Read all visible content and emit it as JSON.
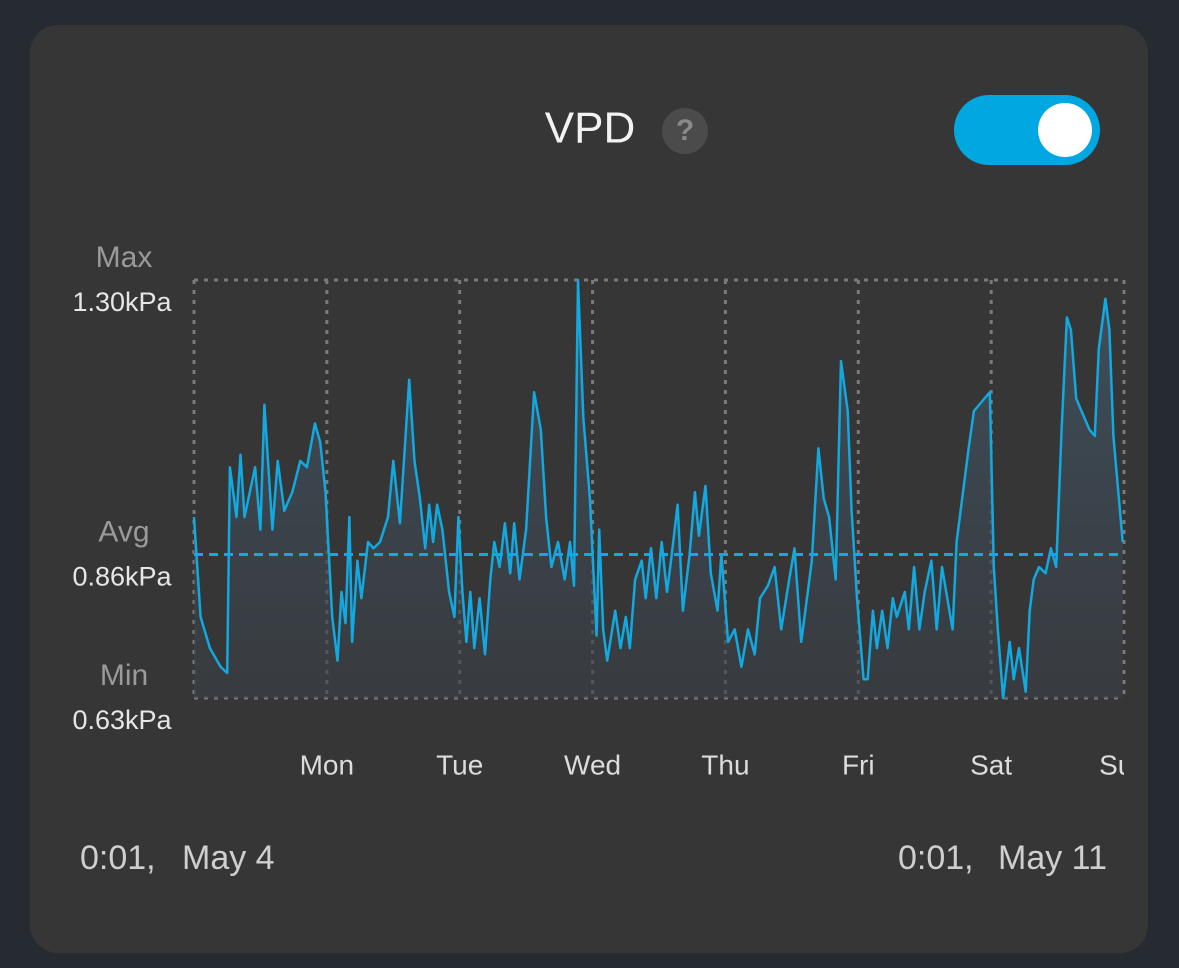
{
  "chart_data": {
    "type": "line",
    "title": "VPD",
    "help": "?",
    "toggle_on": true,
    "color": "#12a8e0",
    "x": [
      0.0,
      0.05,
      0.12,
      0.2,
      0.25,
      0.27,
      0.32,
      0.35,
      0.38,
      0.46,
      0.5,
      0.53,
      0.59,
      0.63,
      0.68,
      0.74,
      0.8,
      0.85,
      0.91,
      0.95,
      0.99,
      1.04,
      1.08,
      1.11,
      1.14,
      1.17,
      1.19,
      1.23,
      1.26,
      1.31,
      1.35,
      1.4,
      1.46,
      1.5,
      1.55,
      1.62,
      1.66,
      1.7,
      1.74,
      1.77,
      1.8,
      1.83,
      1.87,
      1.92,
      1.96,
      1.99,
      2.02,
      2.05,
      2.08,
      2.11,
      2.15,
      2.19,
      2.23,
      2.26,
      2.3,
      2.34,
      2.38,
      2.41,
      2.45,
      2.5,
      2.56,
      2.61,
      2.65,
      2.69,
      2.74,
      2.79,
      2.83,
      2.86,
      2.89,
      2.93,
      2.98,
      3.0,
      3.03,
      3.05,
      3.08,
      3.11,
      3.17,
      3.21,
      3.25,
      3.28,
      3.32,
      3.37,
      3.4,
      3.44,
      3.48,
      3.52,
      3.56,
      3.59,
      3.64,
      3.68,
      3.73,
      3.77,
      3.8,
      3.85,
      3.89,
      3.94,
      3.97,
      4.02,
      4.07,
      4.12,
      4.17,
      4.22,
      4.26,
      4.32,
      4.37,
      4.42,
      4.48,
      4.52,
      4.57,
      4.62,
      4.65,
      4.7,
      4.74,
      4.78,
      4.83,
      4.87,
      4.92,
      4.95,
      4.99,
      5.04,
      5.07,
      5.11,
      5.14,
      5.18,
      5.22,
      5.26,
      5.29,
      5.35,
      5.38,
      5.42,
      5.46,
      5.5,
      5.55,
      5.59,
      5.63,
      5.67,
      5.71,
      5.74,
      5.77,
      5.8,
      5.83,
      5.87,
      5.95,
      5.99,
      6.02,
      6.05,
      6.09,
      6.14,
      6.17,
      6.21,
      6.26,
      6.29,
      6.32,
      6.36,
      6.41,
      6.45,
      6.49,
      6.53,
      6.57,
      6.6,
      6.64,
      6.68,
      6.74,
      6.78,
      6.81,
      6.86,
      6.89,
      6.92,
      6.99
    ],
    "values": [
      0.92,
      0.76,
      0.71,
      0.68,
      0.67,
      1.0,
      0.92,
      1.02,
      0.92,
      1.0,
      0.9,
      1.1,
      0.9,
      1.01,
      0.93,
      0.96,
      1.01,
      1.0,
      1.07,
      1.04,
      0.96,
      0.76,
      0.69,
      0.8,
      0.75,
      0.92,
      0.72,
      0.85,
      0.79,
      0.88,
      0.87,
      0.88,
      0.92,
      1.01,
      0.91,
      1.14,
      1.01,
      0.95,
      0.87,
      0.94,
      0.88,
      0.94,
      0.9,
      0.8,
      0.76,
      0.92,
      0.8,
      0.72,
      0.8,
      0.71,
      0.79,
      0.7,
      0.82,
      0.88,
      0.84,
      0.91,
      0.83,
      0.91,
      0.82,
      0.9,
      1.12,
      1.06,
      0.92,
      0.84,
      0.88,
      0.82,
      0.88,
      0.81,
      1.3,
      1.08,
      0.95,
      0.86,
      0.73,
      0.9,
      0.74,
      0.69,
      0.77,
      0.71,
      0.76,
      0.71,
      0.82,
      0.85,
      0.79,
      0.87,
      0.79,
      0.88,
      0.8,
      0.85,
      0.94,
      0.77,
      0.86,
      0.96,
      0.89,
      0.97,
      0.83,
      0.77,
      0.86,
      0.72,
      0.74,
      0.68,
      0.74,
      0.7,
      0.79,
      0.81,
      0.84,
      0.74,
      0.82,
      0.87,
      0.72,
      0.8,
      0.85,
      1.03,
      0.95,
      0.92,
      0.82,
      1.17,
      1.09,
      0.93,
      0.79,
      0.66,
      0.66,
      0.77,
      0.71,
      0.77,
      0.71,
      0.79,
      0.76,
      0.8,
      0.74,
      0.84,
      0.74,
      0.8,
      0.85,
      0.74,
      0.84,
      0.79,
      0.74,
      0.88,
      0.93,
      0.98,
      1.03,
      1.09,
      1.11,
      1.12,
      0.84,
      0.74,
      0.63,
      0.72,
      0.66,
      0.71,
      0.64,
      0.77,
      0.82,
      0.84,
      0.83,
      0.87,
      0.84,
      1.06,
      1.24,
      1.22,
      1.11,
      1.09,
      1.06,
      1.05,
      1.19,
      1.27,
      1.22,
      1.05,
      0.88
    ],
    "xlim": [
      0,
      7
    ],
    "xticks": [
      {
        "value": 1,
        "label": "Mon"
      },
      {
        "value": 2,
        "label": "Tue"
      },
      {
        "value": 3,
        "label": "Wed"
      },
      {
        "value": 4,
        "label": "Thu"
      },
      {
        "value": 5,
        "label": "Fri"
      },
      {
        "value": 6,
        "label": "Sat"
      },
      {
        "value": 7,
        "label": "Sun"
      }
    ],
    "ylim": [
      0.63,
      1.3
    ],
    "yticks": [
      {
        "value": 1.3,
        "label": "1.30kPa"
      },
      {
        "value": 0.86,
        "label": "0.86kPa"
      },
      {
        "value": 0.63,
        "label": "0.63kPa"
      }
    ],
    "ytick_names": [
      "Max",
      "Avg",
      "Min"
    ],
    "range_start": [
      "0:01,",
      "May 4"
    ],
    "range_end": [
      "0:01,",
      "May 11"
    ]
  }
}
